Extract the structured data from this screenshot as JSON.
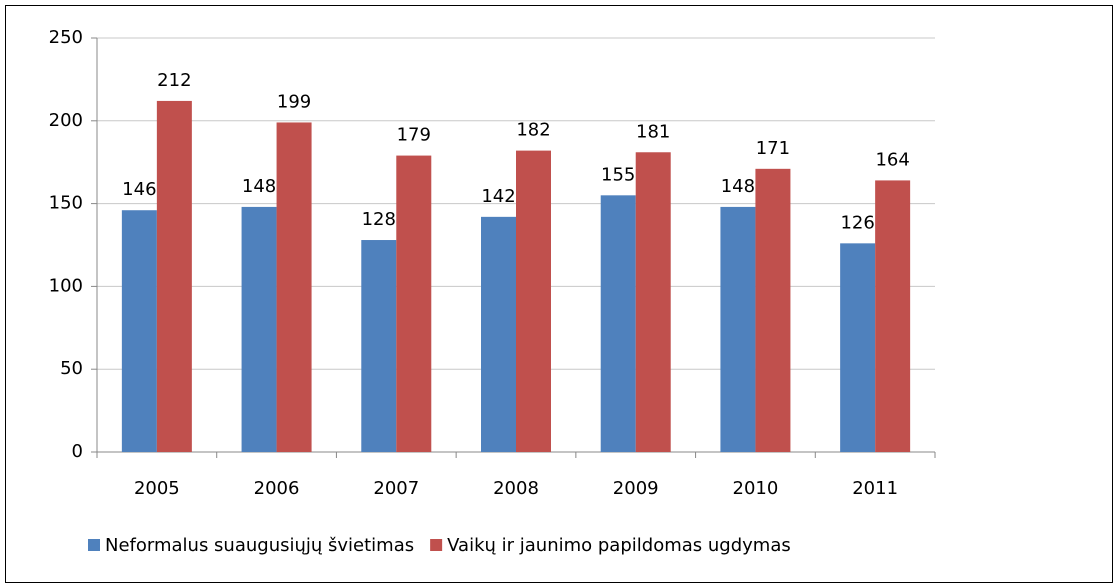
{
  "chart_data": {
    "type": "bar",
    "categories": [
      "2005",
      "2006",
      "2007",
      "2008",
      "2009",
      "2010",
      "2011"
    ],
    "series": [
      {
        "name": "Neformalus suaugusiųjų švietimas",
        "color": "#4f81bd",
        "values": [
          146,
          148,
          128,
          142,
          155,
          148,
          126
        ]
      },
      {
        "name": "Vaikų ir jaunimo papildomas ugdymas",
        "color": "#c0504d",
        "values": [
          212,
          199,
          179,
          182,
          181,
          171,
          164
        ]
      }
    ],
    "ylim": [
      0,
      250
    ],
    "yticks": [
      0,
      50,
      100,
      150,
      200,
      250
    ],
    "grid": true,
    "legend": "bottom"
  }
}
